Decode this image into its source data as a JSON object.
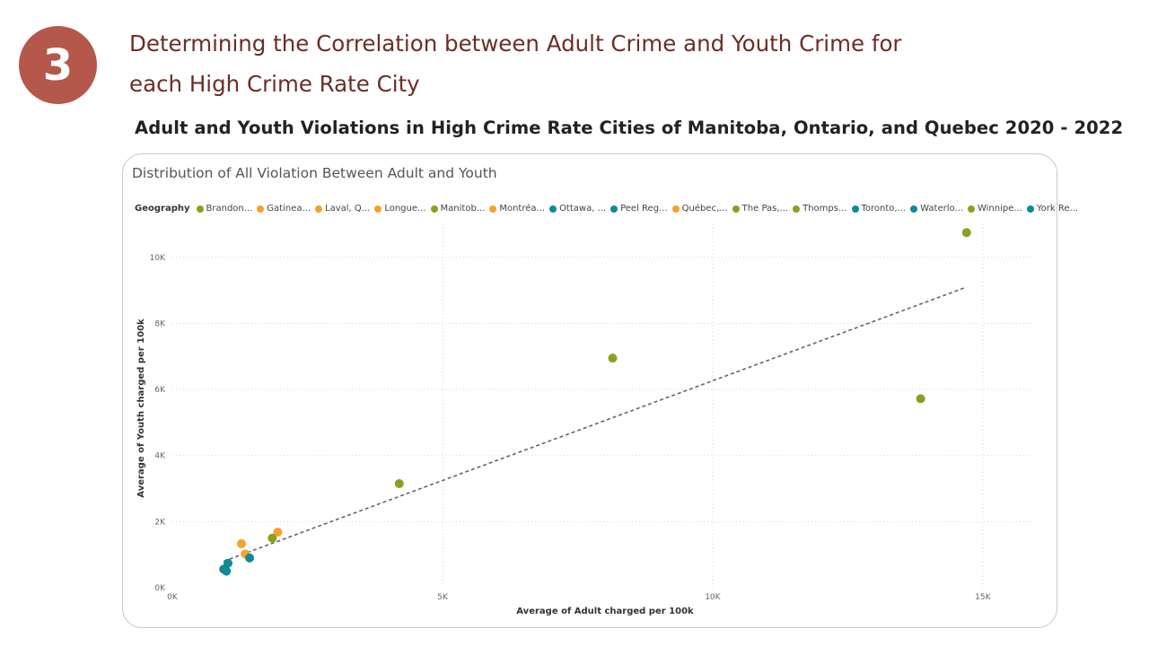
{
  "slide": {
    "step_number": "3",
    "title_line1": "Determining the Correlation between Adult Crime and Youth Crime for",
    "title_line2": "each High Crime Rate City",
    "report_title": "Adult and Youth Violations in High Crime Rate Cities of Manitoba, Ontario, and Quebec 2020 - 2022"
  },
  "colors": {
    "badge": "#b5574b",
    "title_text": "#6b2e26",
    "manitoba": "#8c9f1f",
    "quebec": "#f5a12c",
    "ontario": "#0f8a96",
    "trend": "#666666"
  },
  "chart_data": {
    "type": "scatter",
    "title": "Distribution of All Violation Between Adult and Youth",
    "legend_title": "Geography",
    "legend_position": "top",
    "xlabel": "Average of Adult charged per 100k",
    "ylabel": "Average of Youth charged per 100k",
    "xlim": [
      0,
      16000
    ],
    "ylim": [
      0,
      11000
    ],
    "x_ticks": [
      0,
      5000,
      10000,
      15000
    ],
    "x_tick_labels": [
      "0K",
      "5K",
      "10K",
      "15K"
    ],
    "y_ticks": [
      0,
      2000,
      4000,
      6000,
      8000,
      10000
    ],
    "y_tick_labels": [
      "0K",
      "2K",
      "4K",
      "6K",
      "8K",
      "10K"
    ],
    "grid": true,
    "legend": [
      {
        "label": "Brandon...",
        "color": "#8c9f1f"
      },
      {
        "label": "Gatinea...",
        "color": "#f5a12c"
      },
      {
        "label": "Laval, Q...",
        "color": "#f5a12c"
      },
      {
        "label": "Longue...",
        "color": "#f5a12c"
      },
      {
        "label": "Manitob...",
        "color": "#8c9f1f"
      },
      {
        "label": "Montréa...",
        "color": "#f5a12c"
      },
      {
        "label": "Ottawa, ...",
        "color": "#0f8a96"
      },
      {
        "label": "Peel Reg...",
        "color": "#0f8a96"
      },
      {
        "label": "Québec,...",
        "color": "#f5a12c"
      },
      {
        "label": "The Pas,...",
        "color": "#8c9f1f"
      },
      {
        "label": "Thomps...",
        "color": "#8c9f1f"
      },
      {
        "label": "Toronto,...",
        "color": "#0f8a96"
      },
      {
        "label": "Waterlo...",
        "color": "#0f8a96"
      },
      {
        "label": "Winnipe...",
        "color": "#8c9f1f"
      },
      {
        "label": "York Re...",
        "color": "#0f8a96"
      }
    ],
    "points": [
      {
        "x": 14700,
        "y": 10750,
        "color": "#8c9f1f"
      },
      {
        "x": 8150,
        "y": 6950,
        "color": "#8c9f1f"
      },
      {
        "x": 13850,
        "y": 5720,
        "color": "#8c9f1f"
      },
      {
        "x": 4200,
        "y": 3150,
        "color": "#8c9f1f"
      },
      {
        "x": 1950,
        "y": 1680,
        "color": "#f5a12c"
      },
      {
        "x": 1850,
        "y": 1500,
        "color": "#8c9f1f"
      },
      {
        "x": 1280,
        "y": 1330,
        "color": "#f5a12c"
      },
      {
        "x": 1350,
        "y": 1020,
        "color": "#f5a12c"
      },
      {
        "x": 1430,
        "y": 900,
        "color": "#0f8a96"
      },
      {
        "x": 1030,
        "y": 740,
        "color": "#0f8a96"
      },
      {
        "x": 950,
        "y": 560,
        "color": "#0f8a96"
      },
      {
        "x": 1000,
        "y": 500,
        "color": "#0f8a96"
      }
    ],
    "trendline": {
      "x": [
        950,
        14700
      ],
      "y": [
        800,
        9100
      ]
    }
  }
}
